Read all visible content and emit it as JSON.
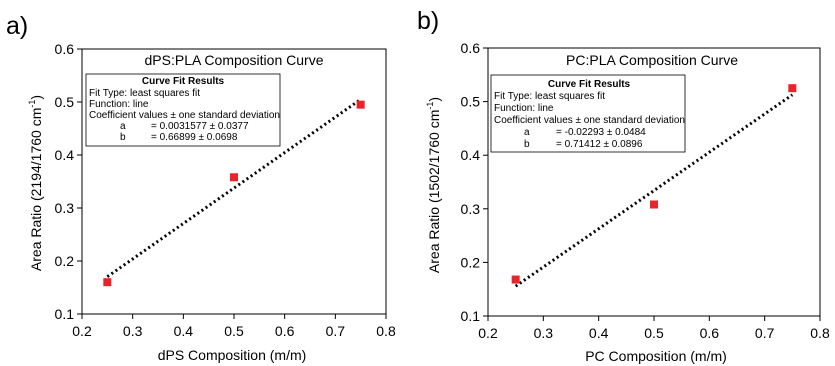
{
  "chart_data": [
    {
      "type": "scatter",
      "panel_label": "a)",
      "title": "dPS:PLA Composition Curve",
      "xlabel": "dPS Composition (m/m)",
      "ylabel": "Area Ratio (2194/1760 cm",
      "ylabel_sup": "-1",
      "ylabel_close": ")",
      "xlim": [
        0.2,
        0.8
      ],
      "ylim": [
        0.1,
        0.6
      ],
      "xticks": [
        "0.2",
        "0.3",
        "0.4",
        "0.5",
        "0.6",
        "0.7",
        "0.8"
      ],
      "yticks": [
        "0.1",
        "0.2",
        "0.3",
        "0.4",
        "0.5",
        "0.6"
      ],
      "grid": false,
      "marker_color": "#e8232b",
      "points": [
        {
          "x": 0.25,
          "y": 0.16
        },
        {
          "x": 0.5,
          "y": 0.358
        },
        {
          "x": 0.75,
          "y": 0.495
        }
      ],
      "fit": {
        "slope": 0.66899,
        "intercept": 0.0031577,
        "x_range": [
          0.25,
          0.75
        ]
      },
      "fit_box": {
        "title": "Curve Fit Results",
        "fit_type": "Fit Type: least squares fit",
        "function": "Function: line",
        "coef_header": "Coefficient values ± one standard deviation",
        "rows": [
          {
            "name": "a",
            "value": "= 0.0031577 ± 0.0377"
          },
          {
            "name": "b",
            "value": "= 0.66899 ± 0.0698"
          }
        ]
      }
    },
    {
      "type": "scatter",
      "panel_label": "b)",
      "title": "PC:PLA Composition Curve",
      "xlabel": "PC Composition (m/m)",
      "ylabel": "Area Ratio (1502/1760 cm",
      "ylabel_sup": "-1",
      "ylabel_close": ")",
      "xlim": [
        0.2,
        0.8
      ],
      "ylim": [
        0.1,
        0.6
      ],
      "xticks": [
        "0.2",
        "0.3",
        "0.4",
        "0.5",
        "0.6",
        "0.7",
        "0.8"
      ],
      "yticks": [
        "0.1",
        "0.2",
        "0.3",
        "0.4",
        "0.5",
        "0.6"
      ],
      "grid": false,
      "marker_color": "#e8232b",
      "points": [
        {
          "x": 0.25,
          "y": 0.168
        },
        {
          "x": 0.5,
          "y": 0.308
        },
        {
          "x": 0.75,
          "y": 0.525
        }
      ],
      "fit": {
        "slope": 0.71412,
        "intercept": -0.02293,
        "x_range": [
          0.25,
          0.75
        ]
      },
      "fit_box": {
        "title": "Curve Fit Results",
        "fit_type": "Fit Type: least squares fit",
        "function": "Function: line",
        "coef_header": "Coefficient values ± one standard deviation",
        "rows": [
          {
            "name": "a",
            "value": "= -0.02293 ± 0.0484"
          },
          {
            "name": "b",
            "value": "= 0.71412 ± 0.0896"
          }
        ]
      }
    }
  ]
}
